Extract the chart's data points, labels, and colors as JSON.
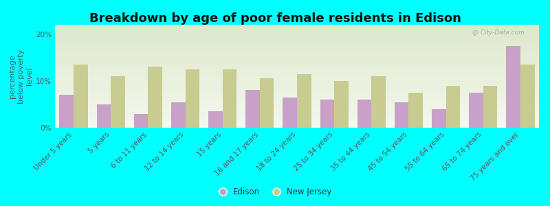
{
  "title": "Breakdown by age of poor female residents in Edison",
  "ylabel": "percentage\nbelow poverty\nlevel",
  "categories": [
    "Under 5 years",
    "5 years",
    "6 to 11 years",
    "12 to 14 years",
    "15 years",
    "16 and 17 years",
    "18 to 24 years",
    "25 to 34 years",
    "35 to 44 years",
    "45 to 54 years",
    "55 to 64 years",
    "65 to 74 years",
    "75 years and over"
  ],
  "edison": [
    7.0,
    5.0,
    3.0,
    5.5,
    3.5,
    8.0,
    6.5,
    6.0,
    6.0,
    5.5,
    4.0,
    7.5,
    17.5
  ],
  "new_jersey": [
    13.5,
    11.0,
    13.0,
    12.5,
    12.5,
    10.5,
    11.5,
    10.0,
    11.0,
    7.5,
    9.0,
    9.0,
    13.5
  ],
  "edison_color": "#c8a0c8",
  "nj_color": "#c8cc90",
  "bg_top": "#f5f8ee",
  "bg_bottom": "#dde8cc",
  "outer_background": "#00ffff",
  "ylim": [
    0,
    22
  ],
  "yticks": [
    0,
    10,
    20
  ],
  "ytick_labels": [
    "0%",
    "10%",
    "20%"
  ],
  "bar_width": 0.38,
  "title_fontsize": 13,
  "axis_label_fontsize": 8,
  "tick_fontsize": 7.5,
  "legend_labels": [
    "Edison",
    "New Jersey"
  ],
  "watermark": "@ City-Data.com"
}
